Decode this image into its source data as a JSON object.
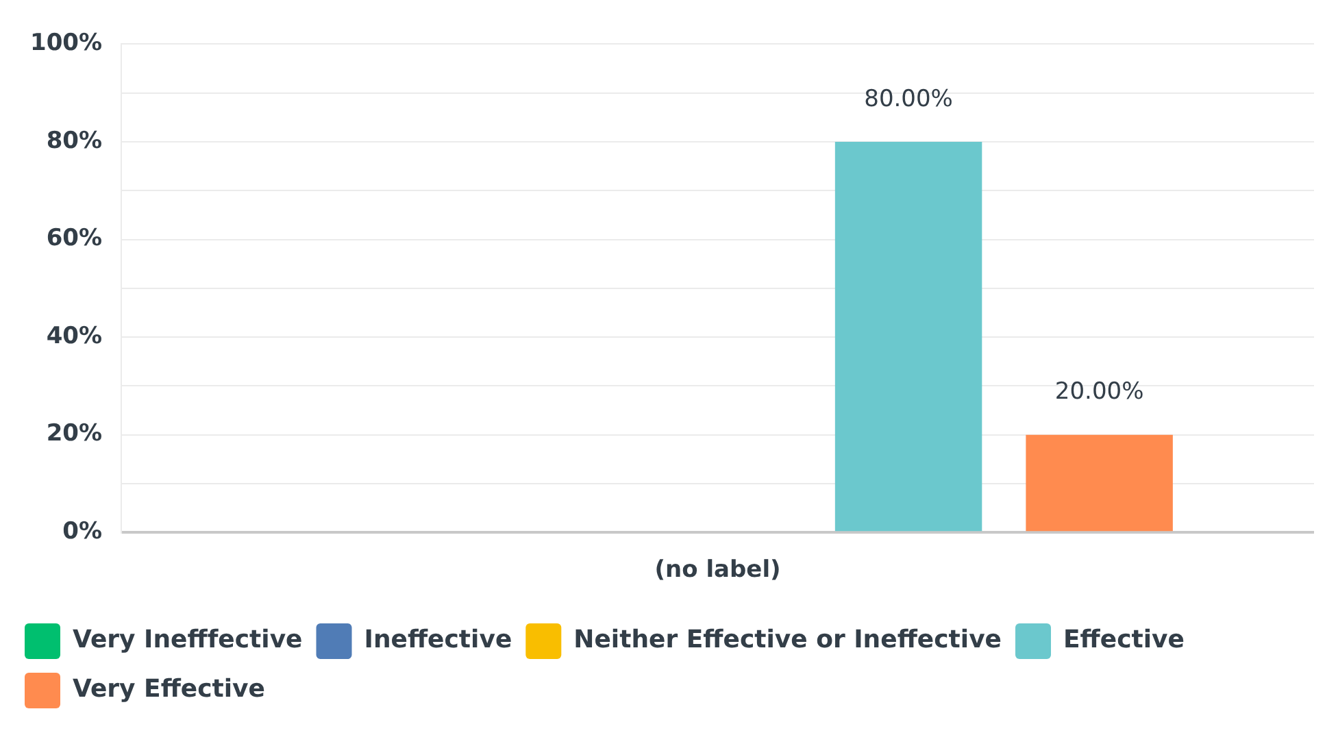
{
  "chart_data": {
    "type": "bar",
    "categories": [
      "(no label)"
    ],
    "series": [
      {
        "name": "Very Inefffective",
        "color": "#00bf6f",
        "values": [
          0
        ],
        "value_labels": [
          null
        ]
      },
      {
        "name": "Ineffective",
        "color": "#507cb6",
        "values": [
          0
        ],
        "value_labels": [
          null
        ]
      },
      {
        "name": "Neither Effective or Ineffective",
        "color": "#f9be00",
        "values": [
          0
        ],
        "value_labels": [
          null
        ]
      },
      {
        "name": "Effective",
        "color": "#6bc8cd",
        "values": [
          80
        ],
        "value_labels": [
          "80.00%"
        ]
      },
      {
        "name": "Very Effective",
        "color": "#ff8b4f",
        "values": [
          20
        ],
        "value_labels": [
          "20.00%"
        ]
      }
    ],
    "ylim": [
      0,
      100
    ],
    "yticks": [
      {
        "value": 0,
        "label": "0%"
      },
      {
        "value": 10,
        "label": null
      },
      {
        "value": 20,
        "label": "20%"
      },
      {
        "value": 30,
        "label": null
      },
      {
        "value": 40,
        "label": "40%"
      },
      {
        "value": 50,
        "label": null
      },
      {
        "value": 60,
        "label": "60%"
      },
      {
        "value": 70,
        "label": null
      },
      {
        "value": 80,
        "label": "80%"
      },
      {
        "value": 90,
        "label": null
      },
      {
        "value": 100,
        "label": "100%"
      }
    ],
    "grid": "y",
    "legend": "bottom"
  }
}
